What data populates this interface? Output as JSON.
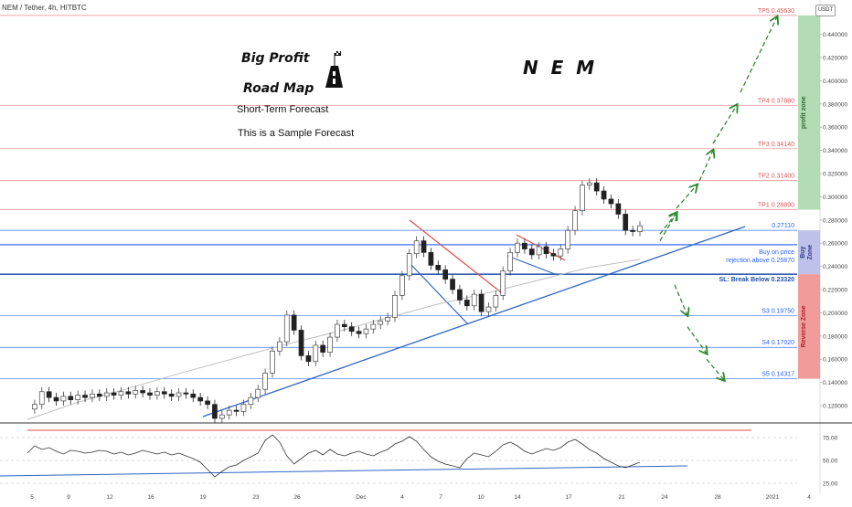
{
  "header": {
    "symbol_title": "NEM / Tether, 4h, HITBTC",
    "currency": "USDT"
  },
  "annotations": {
    "big_profit": "Big Profit",
    "road_map": "Road Map",
    "short_term": "Short-Term Forecast",
    "sample": "This is a Sample Forecast",
    "ticker": "N  E  M"
  },
  "chart_data": {
    "type": "line",
    "price_axis": {
      "ylim": [
        0.1,
        0.46
      ],
      "ticks": [
        "0.120000",
        "0.140000",
        "0.160000",
        "0.180000",
        "0.200000",
        "0.220000",
        "0.240000",
        "0.260000",
        "0.280000",
        "0.300000",
        "0.320000",
        "0.340000",
        "0.360000",
        "0.380000",
        "0.400000",
        "0.420000",
        "0.440000"
      ],
      "tick_values": [
        0.12,
        0.14,
        0.16,
        0.18,
        0.2,
        0.22,
        0.24,
        0.26,
        0.28,
        0.3,
        0.32,
        0.34,
        0.36,
        0.38,
        0.4,
        0.42,
        0.44
      ]
    },
    "time_axis": {
      "labels": [
        "5",
        "9",
        "12",
        "16",
        "19",
        "23",
        "26",
        "Dec",
        "4",
        "7",
        "10",
        "14",
        "17",
        "21",
        "24",
        "28",
        "2021",
        "4"
      ]
    },
    "levels": [
      {
        "label": "TP5 0.45630",
        "value": 0.4563,
        "color": "#e05555"
      },
      {
        "label": "TP4 0.37880",
        "value": 0.3788,
        "color": "#e05555"
      },
      {
        "label": "TP3 0.34140",
        "value": 0.3414,
        "color": "#e05555"
      },
      {
        "label": "TP2 0.31400",
        "value": 0.314,
        "color": "#e05555"
      },
      {
        "label": "TP1 0.28890",
        "value": 0.2889,
        "color": "#e05555"
      },
      {
        "label": "0.27110",
        "value": 0.2711,
        "color": "#2962ff"
      },
      {
        "label": "Buy on price",
        "value": 0.2587,
        "color": "#2962ff"
      },
      {
        "label": "rejection above 0.25870",
        "value": 0.2587,
        "color": "#2962ff"
      },
      {
        "label": "SL: Break Below 0.23320",
        "value": 0.2332,
        "color": "#1e4fa8"
      },
      {
        "label": "S3 0.19750",
        "value": 0.1975,
        "color": "#2962ff"
      },
      {
        "label": "S4 0.17020",
        "value": 0.1702,
        "color": "#2962ff"
      },
      {
        "label": "S5 0.14317",
        "value": 0.14317,
        "color": "#2962ff"
      }
    ],
    "zones": [
      {
        "name": "profit zone",
        "from": 0.2889,
        "to": 0.4563,
        "color": "#a5d6a7"
      },
      {
        "name": "Buy Zone",
        "from": 0.2332,
        "to": 0.2711,
        "color": "#b3b7e6"
      },
      {
        "name": "Reverse Zone",
        "from": 0.14317,
        "to": 0.2332,
        "color": "#ef8a8a"
      }
    ],
    "price_series": [
      0.117,
      0.121,
      0.132,
      0.127,
      0.124,
      0.128,
      0.125,
      0.129,
      0.127,
      0.13,
      0.128,
      0.131,
      0.129,
      0.132,
      0.13,
      0.133,
      0.131,
      0.129,
      0.132,
      0.13,
      0.128,
      0.131,
      0.13,
      0.127,
      0.124,
      0.121,
      0.109,
      0.112,
      0.116,
      0.115,
      0.121,
      0.127,
      0.134,
      0.148,
      0.167,
      0.175,
      0.198,
      0.185,
      0.163,
      0.158,
      0.172,
      0.166,
      0.179,
      0.19,
      0.188,
      0.184,
      0.182,
      0.186,
      0.19,
      0.193,
      0.196,
      0.215,
      0.232,
      0.251,
      0.262,
      0.252,
      0.241,
      0.237,
      0.229,
      0.22,
      0.211,
      0.206,
      0.216,
      0.201,
      0.205,
      0.215,
      0.236,
      0.252,
      0.26,
      0.255,
      0.25,
      0.257,
      0.251,
      0.249,
      0.255,
      0.271,
      0.288,
      0.31,
      0.312,
      0.305,
      0.298,
      0.294,
      0.285,
      0.271,
      0.27,
      0.275
    ],
    "ma_series": [
      0.108,
      0.123,
      0.135,
      0.148,
      0.16,
      0.172,
      0.183,
      0.195,
      0.207,
      0.217,
      0.228,
      0.239,
      0.246
    ],
    "projection_up": [
      [
        0.262,
        0.262
      ],
      [
        0.268,
        0.286
      ],
      [
        0.29,
        0.31
      ],
      [
        0.308,
        0.34
      ],
      [
        0.346,
        0.379
      ],
      [
        0.39,
        0.455
      ]
    ],
    "projection_down": [
      [
        0.224,
        0.198
      ],
      [
        0.188,
        0.165
      ],
      [
        0.16,
        0.142
      ]
    ],
    "rsi": {
      "ylim": [
        20,
        90
      ],
      "ticks": [
        "75.00",
        "50.00",
        "25.00"
      ],
      "tick_values": [
        75,
        50,
        25
      ],
      "overbought": 83,
      "series": [
        58,
        66,
        62,
        64,
        60,
        57,
        61,
        60,
        58,
        59,
        61,
        60,
        57,
        59,
        56,
        58,
        61,
        59,
        57,
        59,
        56,
        58,
        55,
        52,
        48,
        40,
        32,
        38,
        43,
        45,
        50,
        54,
        58,
        72,
        78,
        70,
        55,
        46,
        52,
        58,
        61,
        56,
        62,
        57,
        55,
        58,
        60,
        57,
        55,
        59,
        62,
        68,
        71,
        76,
        71,
        62,
        54,
        49,
        46,
        44,
        42,
        52,
        58,
        56,
        54,
        60,
        67,
        70,
        66,
        60,
        57,
        60,
        63,
        61,
        64,
        70,
        73,
        68,
        62,
        58,
        52,
        48,
        44,
        42,
        45,
        48
      ]
    }
  }
}
